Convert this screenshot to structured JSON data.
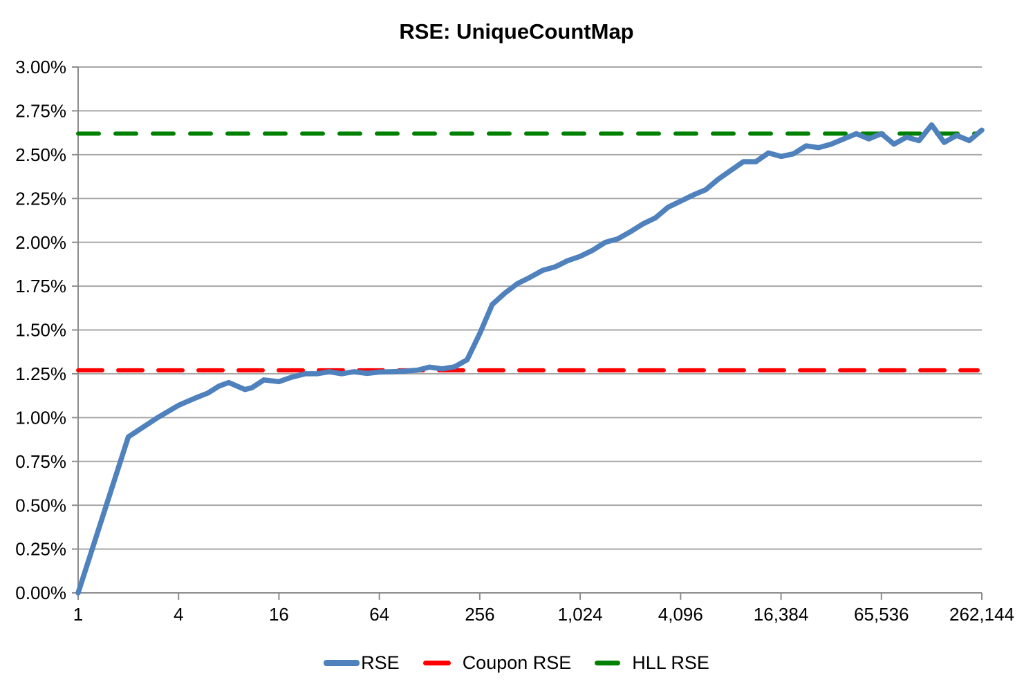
{
  "title": "RSE: UniqueCountMap",
  "colors": {
    "rse": "#4f81bd",
    "coupon": "#ff0000",
    "hll": "#008000",
    "grid": "#a6a6a6",
    "axis": "#8c8c8c",
    "text": "#000000",
    "background": "#ffffff"
  },
  "legend": {
    "items": [
      {
        "label": "RSE",
        "color_key": "rse",
        "style": "solid"
      },
      {
        "label": "Coupon RSE",
        "color_key": "coupon",
        "style": "dashed"
      },
      {
        "label": "HLL RSE",
        "color_key": "hll",
        "style": "dashed"
      }
    ]
  },
  "chart_data": {
    "type": "line",
    "title": "RSE: UniqueCountMap",
    "xlabel": "",
    "ylabel": "",
    "x_scale": "log2",
    "xlim": [
      1,
      262144
    ],
    "ylim": [
      0,
      3
    ],
    "grid": "horizontal-only",
    "legend_position": "bottom",
    "x_ticks": [
      {
        "v": 1,
        "label": "1"
      },
      {
        "v": 4,
        "label": "4"
      },
      {
        "v": 16,
        "label": "16"
      },
      {
        "v": 64,
        "label": "64"
      },
      {
        "v": 256,
        "label": "256"
      },
      {
        "v": 1024,
        "label": "1,024"
      },
      {
        "v": 4096,
        "label": "4,096"
      },
      {
        "v": 16384,
        "label": "16,384"
      },
      {
        "v": 65536,
        "label": "65,536"
      },
      {
        "v": 262144,
        "label": "262,144"
      }
    ],
    "y_ticks": [
      {
        "v": 3.0,
        "label": "3.00%"
      },
      {
        "v": 2.75,
        "label": "2.75%"
      },
      {
        "v": 2.5,
        "label": "2.50%"
      },
      {
        "v": 2.25,
        "label": "2.25%"
      },
      {
        "v": 2.0,
        "label": "2.00%"
      },
      {
        "v": 1.75,
        "label": "1.75%"
      },
      {
        "v": 1.5,
        "label": "1.50%"
      },
      {
        "v": 1.25,
        "label": "1.25%"
      },
      {
        "v": 1.0,
        "label": "1.00%"
      },
      {
        "v": 0.75,
        "label": "0.75%"
      },
      {
        "v": 0.5,
        "label": "0.50%"
      },
      {
        "v": 0.25,
        "label": "0.25%"
      },
      {
        "v": 0.0,
        "label": "0.00%"
      }
    ],
    "series": [
      {
        "name": "RSE",
        "kind": "polyline",
        "color_key": "rse",
        "points": [
          [
            1,
            0.0
          ],
          [
            2,
            0.89
          ],
          [
            3,
            1.0
          ],
          [
            4,
            1.07
          ],
          [
            5,
            1.11
          ],
          [
            6,
            1.14
          ],
          [
            7,
            1.18
          ],
          [
            8,
            1.2
          ],
          [
            10,
            1.16
          ],
          [
            11,
            1.17
          ],
          [
            13,
            1.215
          ],
          [
            16,
            1.205
          ],
          [
            19,
            1.23
          ],
          [
            23,
            1.25
          ],
          [
            27,
            1.25
          ],
          [
            32,
            1.262
          ],
          [
            38,
            1.25
          ],
          [
            45,
            1.262
          ],
          [
            54,
            1.252
          ],
          [
            64,
            1.26
          ],
          [
            76,
            1.262
          ],
          [
            91,
            1.265
          ],
          [
            108,
            1.27
          ],
          [
            128,
            1.288
          ],
          [
            152,
            1.278
          ],
          [
            181,
            1.29
          ],
          [
            215,
            1.33
          ],
          [
            256,
            1.48
          ],
          [
            304,
            1.645
          ],
          [
            362,
            1.71
          ],
          [
            431,
            1.765
          ],
          [
            512,
            1.8
          ],
          [
            609,
            1.84
          ],
          [
            724,
            1.86
          ],
          [
            861,
            1.895
          ],
          [
            1024,
            1.92
          ],
          [
            1218,
            1.955
          ],
          [
            1448,
            2.0
          ],
          [
            1722,
            2.02
          ],
          [
            2048,
            2.06
          ],
          [
            2435,
            2.105
          ],
          [
            2896,
            2.14
          ],
          [
            3444,
            2.2
          ],
          [
            4096,
            2.235
          ],
          [
            4871,
            2.27
          ],
          [
            5793,
            2.3
          ],
          [
            6889,
            2.36
          ],
          [
            8192,
            2.41
          ],
          [
            9742,
            2.46
          ],
          [
            11585,
            2.46
          ],
          [
            13777,
            2.51
          ],
          [
            16384,
            2.49
          ],
          [
            19484,
            2.505
          ],
          [
            23170,
            2.55
          ],
          [
            27554,
            2.54
          ],
          [
            32768,
            2.56
          ],
          [
            38968,
            2.59
          ],
          [
            46341,
            2.62
          ],
          [
            55109,
            2.59
          ],
          [
            65536,
            2.62
          ],
          [
            77936,
            2.56
          ],
          [
            92682,
            2.6
          ],
          [
            110218,
            2.58
          ],
          [
            131072,
            2.67
          ],
          [
            155872,
            2.57
          ],
          [
            185364,
            2.61
          ],
          [
            220436,
            2.58
          ],
          [
            262144,
            2.64
          ]
        ]
      },
      {
        "name": "Coupon RSE",
        "kind": "hline",
        "color_key": "coupon",
        "value": 1.27
      },
      {
        "name": "HLL RSE",
        "kind": "hline",
        "color_key": "hll",
        "value": 2.62
      }
    ]
  }
}
